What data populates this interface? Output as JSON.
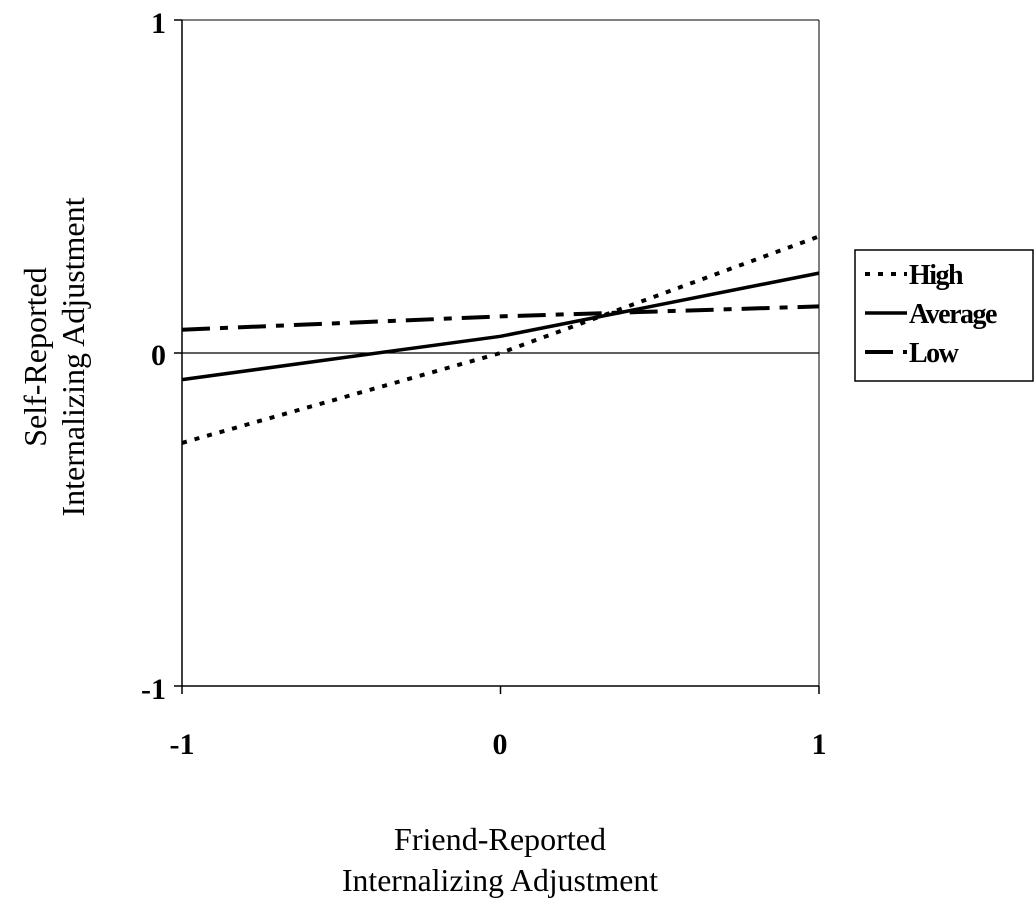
{
  "chart_data": {
    "type": "line",
    "title": "",
    "xlabel": [
      "Friend-Reported",
      "Internalizing Adjustment"
    ],
    "ylabel": [
      "Self-Reported",
      "Internalizing Adjustment"
    ],
    "x": [
      -1,
      0,
      1
    ],
    "xlim": [
      -1,
      1
    ],
    "ylim": [
      -1,
      1
    ],
    "x_ticks": [
      "-1",
      "0",
      "1"
    ],
    "y_ticks": [
      "-1",
      "0",
      "1"
    ],
    "grid": false,
    "legend_position": "right",
    "series": [
      {
        "name": "High",
        "style": "dotted",
        "values": [
          -0.27,
          0.0,
          0.35
        ]
      },
      {
        "name": "Average",
        "style": "solid",
        "values": [
          -0.08,
          0.05,
          0.24
        ]
      },
      {
        "name": "Low",
        "style": "dash-dot",
        "values": [
          0.07,
          0.11,
          0.14
        ]
      }
    ],
    "reference_line": {
      "axis": "y",
      "value": 0
    },
    "line_color": "#000000"
  }
}
